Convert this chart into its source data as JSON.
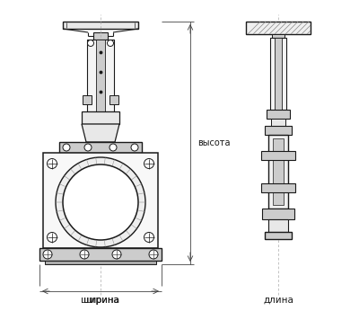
{
  "bg_color": "#ffffff",
  "line_color": "#1a1a1a",
  "dim_color": "#444444",
  "gray_light": "#e8e8e8",
  "gray_mid": "#cccccc",
  "gray_dark": "#aaaaaa",
  "hatch_gray": "#999999",
  "label_vysota": "высота",
  "label_shirina": "ширина",
  "label_dlina": "длина",
  "fig_width": 4.0,
  "fig_height": 3.46
}
